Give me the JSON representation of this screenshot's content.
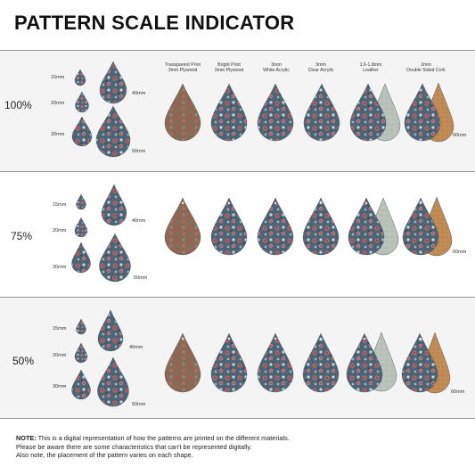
{
  "title": "PATTERN SCALE INDICATOR",
  "materials": [
    {
      "line1": "Transparent Print",
      "line2": "3mm Plywood"
    },
    {
      "line1": "Bright Print",
      "line2": "3mm Plywood"
    },
    {
      "line1": "3mm",
      "line2": "White Acrylic"
    },
    {
      "line1": "3mm",
      "line2": "Clear Acrylic"
    },
    {
      "line1": "1.6-1.8mm",
      "line2": "Leather"
    },
    {
      "line1": "2mm",
      "line2": "Double Sided Cork"
    }
  ],
  "sizes": {
    "s15": "15mm",
    "s20": "20mm",
    "s30": "30mm",
    "s40": "40mm",
    "s50": "50mm",
    "s60": "60mm"
  },
  "rows": [
    {
      "scale": "100%"
    },
    {
      "scale": "75%"
    },
    {
      "scale": "50%"
    }
  ],
  "note": {
    "label": "NOTE:",
    "line1": " This is a digital representation of how the patterns are printed on the different materials.",
    "line2": "Please be aware there are some characteristics that can't be represented digitally.",
    "line3": "Also note, the placement of the pattern varies on each shape."
  },
  "colors": {
    "pattern_base": "#4e6472",
    "pattern_dark": "#34464f",
    "rose": "#b06a70",
    "plywood": "#8a6a55",
    "leather": "#b9c2ba",
    "cork": "#c08a55"
  }
}
